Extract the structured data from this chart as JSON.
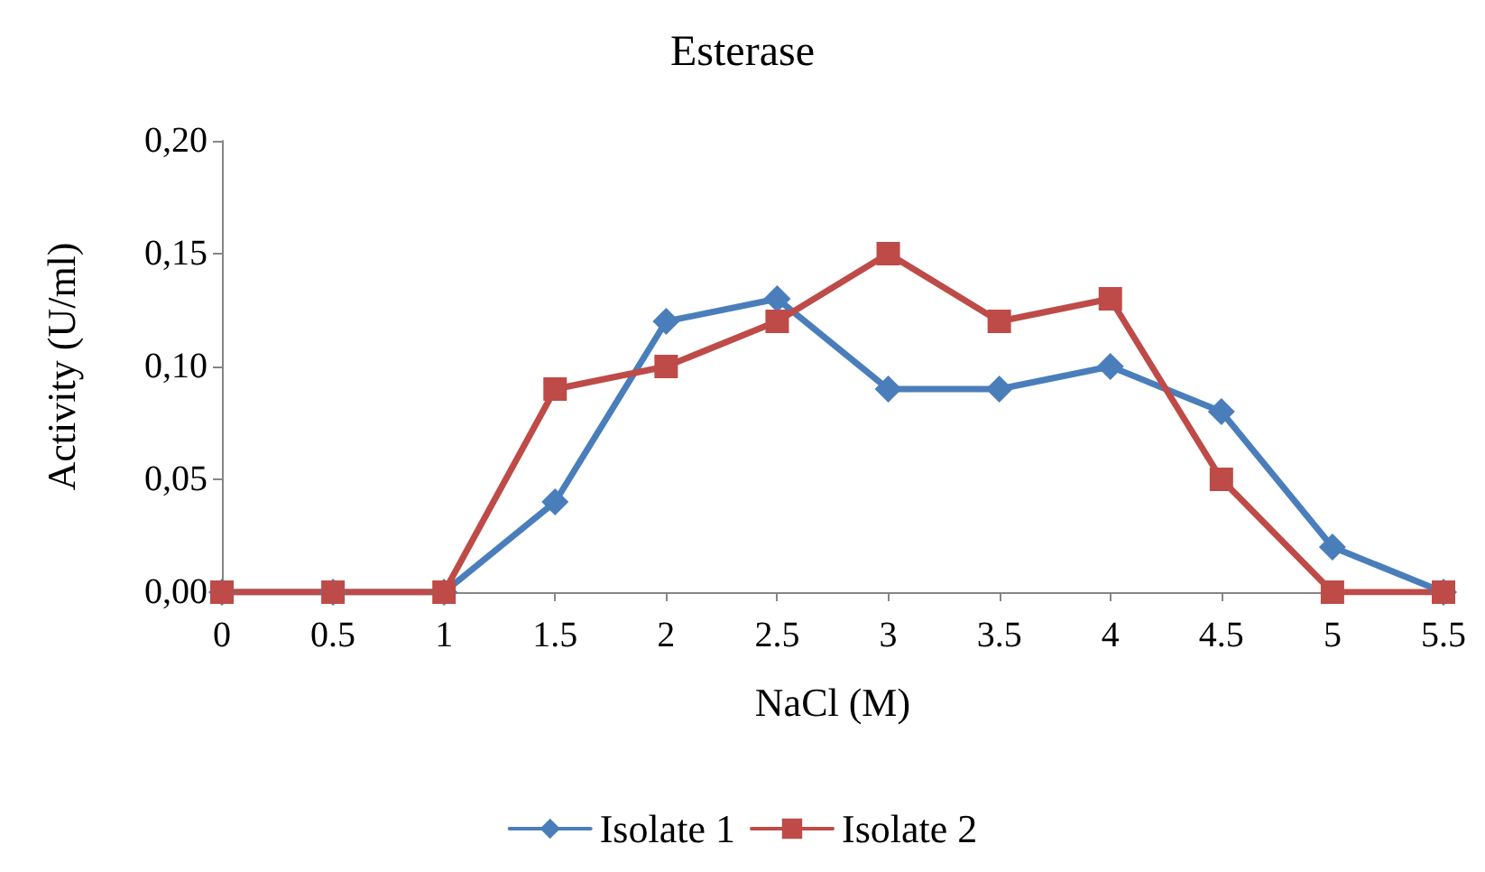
{
  "chart_data": {
    "type": "line",
    "title": "Esterase",
    "xlabel": "NaCl (M)",
    "ylabel": "Activity (U/ml)",
    "categories": [
      "0",
      "0.5",
      "1",
      "1.5",
      "2",
      "2.5",
      "3",
      "3.5",
      "4",
      "4.5",
      "5",
      "5.5"
    ],
    "series": [
      {
        "name": "Isolate 1",
        "color": "#4a7ebb",
        "marker": "diamond",
        "values": [
          0,
          0,
          0,
          0.04,
          0.12,
          0.13,
          0.09,
          0.09,
          0.1,
          0.08,
          0.02,
          0
        ]
      },
      {
        "name": "Isolate 2",
        "color": "#be4b48",
        "marker": "square",
        "values": [
          0,
          0,
          0,
          0.09,
          0.1,
          0.12,
          0.15,
          0.12,
          0.13,
          0.05,
          0,
          0
        ]
      }
    ],
    "ylim": [
      0,
      0.2
    ],
    "yticks": [
      {
        "value": 0,
        "label": "0,00"
      },
      {
        "value": 0.05,
        "label": "0,05"
      },
      {
        "value": 0.1,
        "label": "0,10"
      },
      {
        "value": 0.15,
        "label": "0,15"
      },
      {
        "value": 0.2,
        "label": "0,20"
      }
    ],
    "grid": false,
    "legend": "bottom",
    "line_style": "solid"
  }
}
